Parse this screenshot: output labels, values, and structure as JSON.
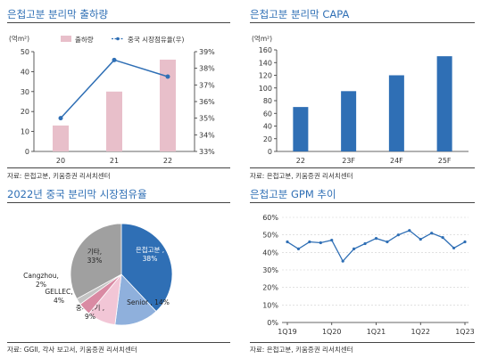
{
  "chart_data": [
    {
      "type": "bar",
      "title": "은첩고분 분리막 출하량",
      "unit_label": "(억m²)",
      "categories": [
        "20",
        "21",
        "22"
      ],
      "series": [
        {
          "name": "출하량",
          "type": "bar",
          "axis": "left",
          "values": [
            13,
            30,
            46
          ]
        },
        {
          "name": "중국 시장점유율(우)",
          "type": "line",
          "axis": "right",
          "values": [
            35.0,
            38.5,
            37.5
          ]
        }
      ],
      "ylim": [
        0,
        50
      ],
      "y_ticks": [
        "0",
        "10",
        "20",
        "30",
        "40",
        "50"
      ],
      "y2lim": [
        33,
        39
      ],
      "y2_ticks": [
        "33%",
        "34%",
        "35%",
        "36%",
        "37%",
        "38%",
        "39%"
      ],
      "colors": {
        "bar": "#e8bfca",
        "line": "#2f6fb5"
      },
      "source": "자료: 은첩고분, 키움증권 리서치센터"
    },
    {
      "type": "bar",
      "title": "은첩고분 분리막 CAPA",
      "unit_label": "(억m²)",
      "categories": [
        "22",
        "23F",
        "24F",
        "25F"
      ],
      "values": [
        70,
        95,
        120,
        150
      ],
      "ylim": [
        0,
        160
      ],
      "y_ticks": [
        "0",
        "20",
        "40",
        "60",
        "80",
        "100",
        "120",
        "140",
        "160"
      ],
      "colors": {
        "bar": "#2f6fb5"
      },
      "source": "자료: 은첩고분, 키움증권 리서치센터"
    },
    {
      "type": "pie",
      "title": "2022년 중국 분리막 시장점유율",
      "slices": [
        {
          "label": "은첩고분 , 38%",
          "value": 38,
          "color": "#2f6fb5"
        },
        {
          "label": "Senior , 14%",
          "value": 14,
          "color": "#8fb0dc"
        },
        {
          "label": "중재과기 , 9%",
          "value": 9,
          "color": "#f2c6d6"
        },
        {
          "label": "GELLEC, 4%",
          "value": 4,
          "color": "#d98aa3"
        },
        {
          "label": "Cangzhou, 2%",
          "value": 2,
          "color": "#c4c4c4"
        },
        {
          "label": "기타, 33%",
          "value": 33,
          "color": "#a0a0a0"
        }
      ],
      "source": "자료: GGII, 각사 보고서, 키움증권 리서치센터"
    },
    {
      "type": "line",
      "title": "은첩고분 GPM 추이",
      "x": [
        "1Q19",
        "2Q19",
        "3Q19",
        "4Q19",
        "1Q20",
        "2Q20",
        "3Q20",
        "4Q20",
        "1Q21",
        "2Q21",
        "3Q21",
        "4Q21",
        "1Q22",
        "2Q22",
        "3Q22",
        "4Q22",
        "1Q23"
      ],
      "x_ticks": [
        "1Q19",
        "1Q20",
        "1Q21",
        "1Q22",
        "1Q23"
      ],
      "values": [
        46,
        42,
        46,
        45.5,
        47,
        35,
        42,
        45,
        48,
        46,
        50,
        52.5,
        47.5,
        51,
        48.5,
        42.5,
        46
      ],
      "ylim": [
        0,
        60
      ],
      "y_ticks": [
        "0%",
        "10%",
        "20%",
        "30%",
        "40%",
        "50%",
        "60%"
      ],
      "grid": true,
      "colors": {
        "line": "#2f6fb5"
      },
      "source": "자료: 은첩고분, 키움증권 리서치센터"
    }
  ]
}
